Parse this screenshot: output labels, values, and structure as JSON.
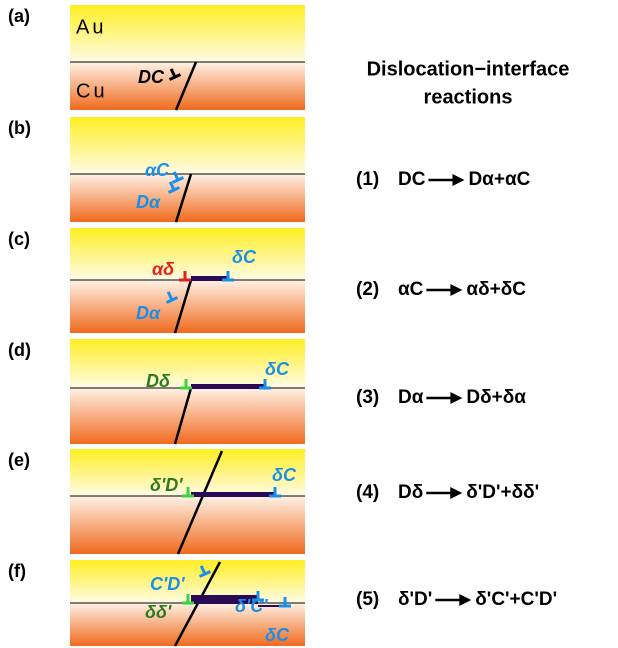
{
  "panels": [
    {
      "tag": "(a)",
      "labels": [
        "Au",
        "Cu",
        "DC"
      ]
    },
    {
      "tag": "(b)",
      "labels": [
        "αC",
        "Dα"
      ]
    },
    {
      "tag": "(c)",
      "labels": [
        "αδ",
        "δC",
        "Dα"
      ]
    },
    {
      "tag": "(d)",
      "labels": [
        "Dδ",
        "δC"
      ]
    },
    {
      "tag": "(e)",
      "labels": [
        "δ'D'",
        "δC"
      ]
    },
    {
      "tag": "(f)",
      "labels": [
        "C'D'",
        "δδ'",
        "δ'C'",
        "δC"
      ]
    }
  ],
  "title": [
    "Dislocation−interface",
    "reactions"
  ],
  "reactions": [
    {
      "number": "(1)",
      "lhs": "DC",
      "rhs": "Dα+αC"
    },
    {
      "number": "(2)",
      "lhs": "αC",
      "rhs": "αδ+δC"
    },
    {
      "number": "(3)",
      "lhs": "Dα",
      "rhs": "Dδ+δα"
    },
    {
      "number": "(4)",
      "lhs": "Dδ",
      "rhs": "δ'D'+δδ'"
    },
    {
      "number": "(5)",
      "lhs": "δ'D'",
      "rhs": "δ'C'+C'D'"
    }
  ]
}
